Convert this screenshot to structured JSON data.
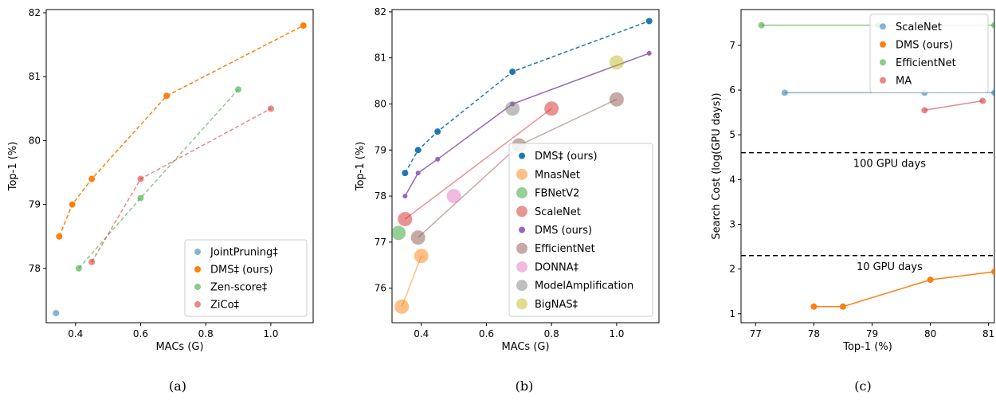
{
  "chart_data": [
    {
      "type": "line",
      "caption": "(a)",
      "xlabel": "MACs (G)",
      "ylabel": "Top-1 (%)",
      "xlim": [
        0.31,
        1.13
      ],
      "ylim": [
        77.15,
        82.05
      ],
      "xticks": [
        0.4,
        0.6,
        0.8,
        1.0
      ],
      "xtick_labels": [
        "0.4",
        "0.6",
        "0.8",
        "1.0"
      ],
      "yticks": [
        78,
        79,
        80,
        81,
        82
      ],
      "ytick_labels": [
        "78",
        "79",
        "80",
        "81",
        "82"
      ],
      "legend_position": "lower-right",
      "series": [
        {
          "name": "JointPruning‡",
          "color": "#1f77b4",
          "style": "dashed",
          "marker_size": 4,
          "alpha": 0.55,
          "x": [
            0.34
          ],
          "y": [
            77.3
          ]
        },
        {
          "name": "DMS‡ (ours)",
          "color": "#ff7f0e",
          "style": "dashed",
          "marker_size": 4,
          "alpha": 1.0,
          "x": [
            0.35,
            0.39,
            0.45,
            0.68,
            1.1
          ],
          "y": [
            78.5,
            79.0,
            79.4,
            80.7,
            81.8
          ]
        },
        {
          "name": "Zen-score‡",
          "color": "#2ca02c",
          "style": "dashed",
          "marker_size": 4,
          "alpha": 0.55,
          "x": [
            0.41,
            0.6,
            0.9
          ],
          "y": [
            78.0,
            79.1,
            80.8
          ]
        },
        {
          "name": "ZiCo‡",
          "color": "#d62728",
          "style": "dashed",
          "marker_size": 4,
          "alpha": 0.55,
          "x": [
            0.45,
            0.6,
            1.0
          ],
          "y": [
            78.1,
            79.4,
            80.5
          ]
        }
      ]
    },
    {
      "type": "scatter",
      "caption": "(b)",
      "xlabel": "MACs (G)",
      "ylabel": "Top-1 (%)",
      "xlim": [
        0.31,
        1.13
      ],
      "ylim": [
        75.25,
        82.05
      ],
      "xticks": [
        0.4,
        0.6,
        0.8,
        1.0
      ],
      "xtick_labels": [
        "0.4",
        "0.6",
        "0.8",
        "1.0"
      ],
      "yticks": [
        76,
        77,
        78,
        79,
        80,
        81,
        82
      ],
      "ytick_labels": [
        "76",
        "77",
        "78",
        "79",
        "80",
        "81",
        "82"
      ],
      "legend_position": "lower-right",
      "series": [
        {
          "name": "DMS‡ (ours)",
          "color": "#1f77b4",
          "style": "dashed",
          "marker_size": 4,
          "alpha": 1.0,
          "x": [
            0.35,
            0.39,
            0.45,
            0.68,
            1.1
          ],
          "y": [
            78.5,
            79.0,
            79.4,
            80.7,
            81.8
          ]
        },
        {
          "name": "MnasNet",
          "color": "#ff7f0e",
          "style": "solid",
          "marker_size": 9,
          "alpha": 0.5,
          "x": [
            0.34,
            0.4
          ],
          "y": [
            75.6,
            76.7
          ]
        },
        {
          "name": "FBNetV2",
          "color": "#2ca02c",
          "style": "solid",
          "marker_size": 9,
          "alpha": 0.5,
          "x": [
            0.33
          ],
          "y": [
            77.2
          ]
        },
        {
          "name": "ScaleNet",
          "color": "#d62728",
          "style": "solid",
          "marker_size": 9,
          "alpha": 0.5,
          "x": [
            0.35,
            0.8
          ],
          "y": [
            77.5,
            79.9
          ]
        },
        {
          "name": "DMS (ours)",
          "color": "#9467bd",
          "style": "solid",
          "marker_size": 3,
          "alpha": 1.0,
          "x": [
            0.35,
            0.39,
            0.45,
            0.68,
            1.1
          ],
          "y": [
            78.0,
            78.5,
            78.8,
            80.0,
            81.1
          ]
        },
        {
          "name": "EfficientNet",
          "color": "#8c564b",
          "style": "solid",
          "marker_size": 9,
          "alpha": 0.5,
          "x": [
            0.39,
            0.7,
            1.0
          ],
          "y": [
            77.1,
            79.1,
            80.1
          ]
        },
        {
          "name": "DONNA‡",
          "color": "#e377c2",
          "style": "solid",
          "marker_size": 9,
          "alpha": 0.5,
          "x": [
            0.5
          ],
          "y": [
            78.0
          ]
        },
        {
          "name": "ModelAmplification",
          "color": "#7f7f7f",
          "style": "solid",
          "marker_size": 9,
          "alpha": 0.5,
          "x": [
            0.68
          ],
          "y": [
            79.9
          ]
        },
        {
          "name": "BigNAS‡",
          "color": "#bcbd22",
          "style": "solid",
          "marker_size": 9,
          "alpha": 0.5,
          "x": [
            1.0
          ],
          "y": [
            80.9
          ]
        }
      ]
    },
    {
      "type": "line",
      "caption": "(c)",
      "xlabel": "Top-1 (%)",
      "ylabel": "Search Cost (log(GPU days))",
      "xlim": [
        76.75,
        81.1
      ],
      "ylim": [
        0.8,
        7.8
      ],
      "xticks": [
        77,
        78,
        79,
        80,
        81
      ],
      "xtick_labels": [
        "77",
        "78",
        "79",
        "80",
        "81"
      ],
      "yticks": [
        1,
        2,
        3,
        4,
        5,
        6,
        7
      ],
      "ytick_labels": [
        "1",
        "2",
        "3",
        "4",
        "5",
        "6",
        "7"
      ],
      "legend_position": "upper-right",
      "reference_lines": [
        {
          "y": 4.6,
          "label": "100 GPU days"
        },
        {
          "y": 2.3,
          "label": "10 GPU days"
        }
      ],
      "series": [
        {
          "name": "ScaleNet",
          "color": "#1f77b4",
          "style": "solid",
          "marker_size": 4,
          "alpha": 0.55,
          "x": [
            77.5,
            79.9,
            81.1
          ],
          "y": [
            5.94,
            5.94,
            5.94
          ]
        },
        {
          "name": "DMS (ours)",
          "color": "#ff7f0e",
          "style": "solid",
          "marker_size": 4,
          "alpha": 1.0,
          "x": [
            78.0,
            78.5,
            80.0,
            81.1
          ],
          "y": [
            1.16,
            1.16,
            1.76,
            1.94
          ]
        },
        {
          "name": "EfficientNet",
          "color": "#2ca02c",
          "style": "solid",
          "marker_size": 4,
          "alpha": 0.55,
          "x": [
            77.1,
            79.1,
            81.1
          ],
          "y": [
            7.45,
            7.45,
            7.45
          ]
        },
        {
          "name": "MA",
          "color": "#d62728",
          "style": "solid",
          "marker_size": 4,
          "alpha": 0.55,
          "x": [
            79.9,
            80.9
          ],
          "y": [
            5.55,
            5.76
          ]
        }
      ]
    }
  ]
}
